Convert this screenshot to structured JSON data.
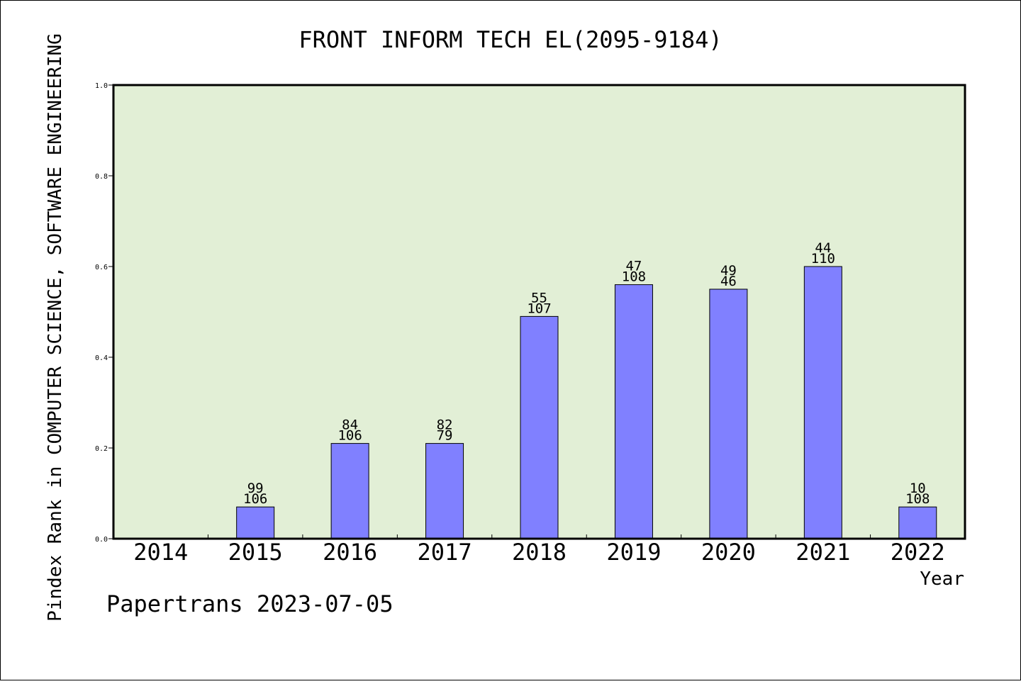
{
  "chart_data": {
    "type": "bar",
    "title": "FRONT INFORM TECH EL(2095-9184)",
    "xlabel": "Year",
    "ylabel": "Pindex Rank in COMPUTER SCIENCE, SOFTWARE ENGINEERING",
    "categories": [
      "2014",
      "2015",
      "2016",
      "2017",
      "2018",
      "2019",
      "2020",
      "2021",
      "2022"
    ],
    "values": [
      null,
      0.07,
      0.21,
      0.21,
      0.49,
      0.56,
      0.55,
      0.6,
      0.07
    ],
    "label_top": [
      "",
      "99",
      "84",
      "82",
      "55",
      "47",
      "49",
      "44",
      "10"
    ],
    "label_bottom": [
      "",
      "106",
      "106",
      "79",
      "107",
      "108",
      "46",
      "110",
      "108"
    ],
    "ylim": [
      0,
      1
    ],
    "yticks": [
      "0.0",
      "0.2",
      "0.4",
      "0.6",
      "0.8",
      "1.0"
    ],
    "grid": false,
    "colors": {
      "plot_background": "#e2efd6",
      "bar_fill": "#8080ff",
      "bar_stroke": "#000000",
      "frame": "#000000"
    }
  },
  "footer": "Papertrans 2023-07-05"
}
